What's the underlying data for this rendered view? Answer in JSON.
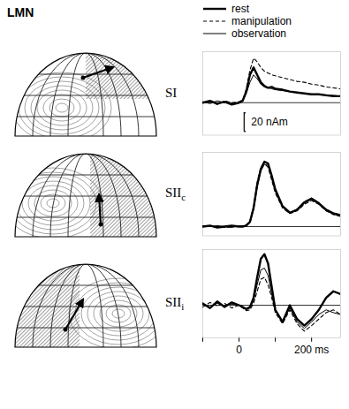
{
  "figure_label": "LMN",
  "chart_data": [
    {
      "type": "line",
      "title": "SI",
      "legend": "top",
      "grid": true,
      "tick_labels": false,
      "xlim": [
        -100,
        280
      ],
      "ylim": [
        -35,
        55
      ],
      "yticks": [
        0
      ],
      "scale_bar": {
        "value": 20,
        "label": "20 nAm"
      },
      "x": [
        -100,
        -80,
        -60,
        -40,
        -20,
        0,
        10,
        20,
        30,
        40,
        50,
        60,
        70,
        80,
        90,
        100,
        120,
        140,
        160,
        180,
        200,
        220,
        240,
        260,
        280
      ],
      "series": [
        {
          "name": "rest",
          "color": "#000000",
          "line_style": "bold",
          "values": [
            0,
            2,
            -1,
            1,
            -2,
            0,
            2,
            12,
            30,
            38,
            30,
            22,
            18,
            16,
            17,
            15,
            14,
            12,
            11,
            10,
            9,
            9,
            8,
            7,
            7
          ]
        },
        {
          "name": "manipulation",
          "color": "#000000",
          "line_style": "dashed",
          "values": [
            0,
            1,
            -2,
            2,
            0,
            1,
            3,
            15,
            35,
            48,
            44,
            38,
            34,
            32,
            30,
            29,
            27,
            25,
            23,
            22,
            20,
            19,
            17,
            16,
            15
          ]
        },
        {
          "name": "observation",
          "color": "#000000",
          "line_style": "solid",
          "values": [
            1,
            -1,
            2,
            0,
            -1,
            0,
            2,
            10,
            22,
            30,
            26,
            20,
            17,
            16,
            15,
            14,
            13,
            12,
            11,
            10,
            9,
            9,
            8,
            8,
            7
          ]
        }
      ]
    },
    {
      "type": "line",
      "title": "SIIc",
      "grid": true,
      "tick_labels": false,
      "xlim": [
        -100,
        280
      ],
      "ylim": [
        -10,
        80
      ],
      "yticks": [
        0
      ],
      "x": [
        -100,
        -80,
        -60,
        -40,
        -20,
        0,
        10,
        20,
        30,
        40,
        50,
        60,
        70,
        80,
        90,
        100,
        120,
        140,
        160,
        180,
        200,
        220,
        240,
        260,
        280
      ],
      "series": [
        {
          "name": "rest",
          "color": "#000000",
          "line_style": "bold",
          "values": [
            0,
            1,
            -1,
            0,
            1,
            0,
            0,
            1,
            5,
            20,
            45,
            62,
            70,
            68,
            55,
            40,
            22,
            15,
            18,
            26,
            30,
            25,
            18,
            14,
            12
          ]
        },
        {
          "name": "manipulation",
          "color": "#000000",
          "line_style": "dashed",
          "values": [
            1,
            0,
            0,
            -1,
            0,
            0,
            1,
            2,
            6,
            22,
            48,
            64,
            68,
            64,
            50,
            36,
            20,
            14,
            17,
            24,
            28,
            24,
            17,
            13,
            11
          ]
        },
        {
          "name": "observation",
          "color": "#000000",
          "line_style": "solid",
          "values": [
            0,
            0,
            1,
            0,
            -1,
            1,
            0,
            1,
            4,
            18,
            42,
            60,
            67,
            66,
            52,
            38,
            21,
            15,
            19,
            27,
            31,
            26,
            19,
            15,
            13
          ]
        }
      ]
    },
    {
      "type": "line",
      "title": "SIIi",
      "grid": true,
      "tick_labels": "x",
      "xlim": [
        -100,
        280
      ],
      "ylim": [
        -35,
        60
      ],
      "yticks": [
        0
      ],
      "xticks": [
        {
          "value": -100,
          "label": null
        },
        0,
        {
          "value": 100,
          "label": null
        },
        {
          "value": 200,
          "label": "200 ms"
        }
      ],
      "x": [
        -100,
        -80,
        -60,
        -40,
        -20,
        0,
        10,
        20,
        30,
        40,
        50,
        60,
        70,
        80,
        90,
        100,
        120,
        140,
        160,
        180,
        200,
        220,
        240,
        260,
        280
      ],
      "series": [
        {
          "name": "rest",
          "color": "#000000",
          "line_style": "bold",
          "values": [
            2,
            -3,
            4,
            -2,
            3,
            0,
            -2,
            -4,
            -2,
            8,
            30,
            50,
            55,
            45,
            20,
            -5,
            -18,
            0,
            -15,
            -22,
            -15,
            -5,
            8,
            15,
            12
          ]
        },
        {
          "name": "manipulation",
          "color": "#000000",
          "line_style": "dashed",
          "values": [
            -2,
            3,
            -1,
            2,
            -3,
            0,
            -3,
            -6,
            -5,
            2,
            15,
            28,
            30,
            22,
            8,
            -8,
            -20,
            -5,
            -20,
            -28,
            -22,
            -15,
            -8,
            -5,
            -10
          ]
        },
        {
          "name": "observation",
          "color": "#000000",
          "line_style": "solid",
          "values": [
            1,
            -2,
            2,
            -1,
            1,
            0,
            -2,
            -5,
            -3,
            5,
            22,
            38,
            40,
            32,
            12,
            -6,
            -18,
            -3,
            -18,
            -25,
            -18,
            -10,
            -5,
            -8,
            -10
          ]
        }
      ]
    }
  ]
}
